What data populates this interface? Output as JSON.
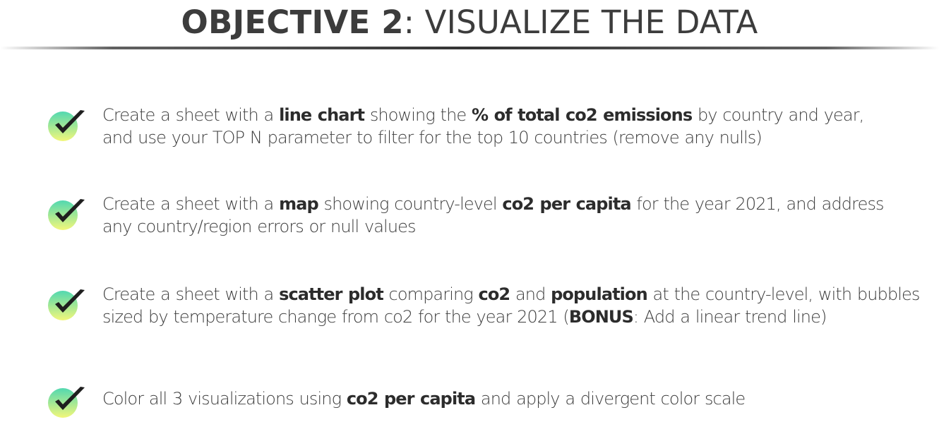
{
  "title": {
    "bold": "OBJECTIVE 2",
    "rest": ": VISUALIZE THE DATA"
  },
  "colors": {
    "check_gradient_start": "#52d8b0",
    "check_gradient_end": "#f2f77a",
    "check_mark": "#1f1f1f",
    "divider": "#444444"
  },
  "items": [
    {
      "icon": "checkmark-icon",
      "lines": [
        [
          {
            "t": "Create a sheet with a ",
            "b": false
          },
          {
            "t": "line chart",
            "b": true
          },
          {
            "t": " showing the ",
            "b": false
          },
          {
            "t": "% of total co2 emissions",
            "b": true
          },
          {
            "t": " by country and year,",
            "b": false
          }
        ],
        [
          {
            "t": "and use your TOP N parameter to filter for the top 10 countries (remove any nulls)",
            "b": false
          }
        ]
      ]
    },
    {
      "icon": "checkmark-icon",
      "lines": [
        [
          {
            "t": "Create a sheet with a ",
            "b": false
          },
          {
            "t": "map",
            "b": true
          },
          {
            "t": " showing country-level ",
            "b": false
          },
          {
            "t": "co2 per capita",
            "b": true
          },
          {
            "t": " for the year 2021, and address",
            "b": false
          }
        ],
        [
          {
            "t": "any country/region errors or null values",
            "b": false
          }
        ]
      ]
    },
    {
      "icon": "checkmark-icon",
      "lines": [
        [
          {
            "t": "Create a sheet with a ",
            "b": false
          },
          {
            "t": "scatter plot",
            "b": true
          },
          {
            "t": " comparing ",
            "b": false
          },
          {
            "t": "co2",
            "b": true
          },
          {
            "t": " and ",
            "b": false
          },
          {
            "t": "population",
            "b": true
          },
          {
            "t": " at the country-level, with bubbles",
            "b": false
          }
        ],
        [
          {
            "t": "sized by temperature change from co2 for the year 2021 (",
            "b": false
          },
          {
            "t": "BONUS",
            "b": true
          },
          {
            "t": ": Add a linear trend line)",
            "b": false
          }
        ]
      ]
    },
    {
      "icon": "checkmark-icon",
      "lines": [
        [
          {
            "t": "Color all 3 visualizations using ",
            "b": false
          },
          {
            "t": "co2 per capita",
            "b": true
          },
          {
            "t": " and apply a divergent color scale",
            "b": false
          }
        ]
      ]
    }
  ]
}
